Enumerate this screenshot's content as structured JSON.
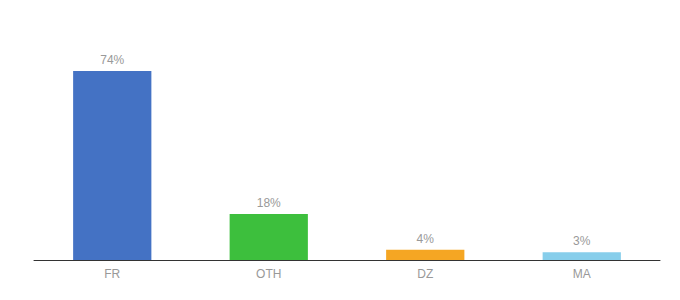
{
  "chart_data": {
    "type": "bar",
    "categories": [
      "FR",
      "OTH",
      "DZ",
      "MA"
    ],
    "values": [
      74,
      18,
      4,
      3
    ],
    "colors": [
      "#4472c4",
      "#3dbf3d",
      "#f5a623",
      "#87ceeb"
    ],
    "value_labels": [
      "74%",
      "18%",
      "4%",
      "3%"
    ],
    "data_labels": true,
    "ylim": [
      0,
      90
    ],
    "tick_labels": "x",
    "grid": false
  }
}
